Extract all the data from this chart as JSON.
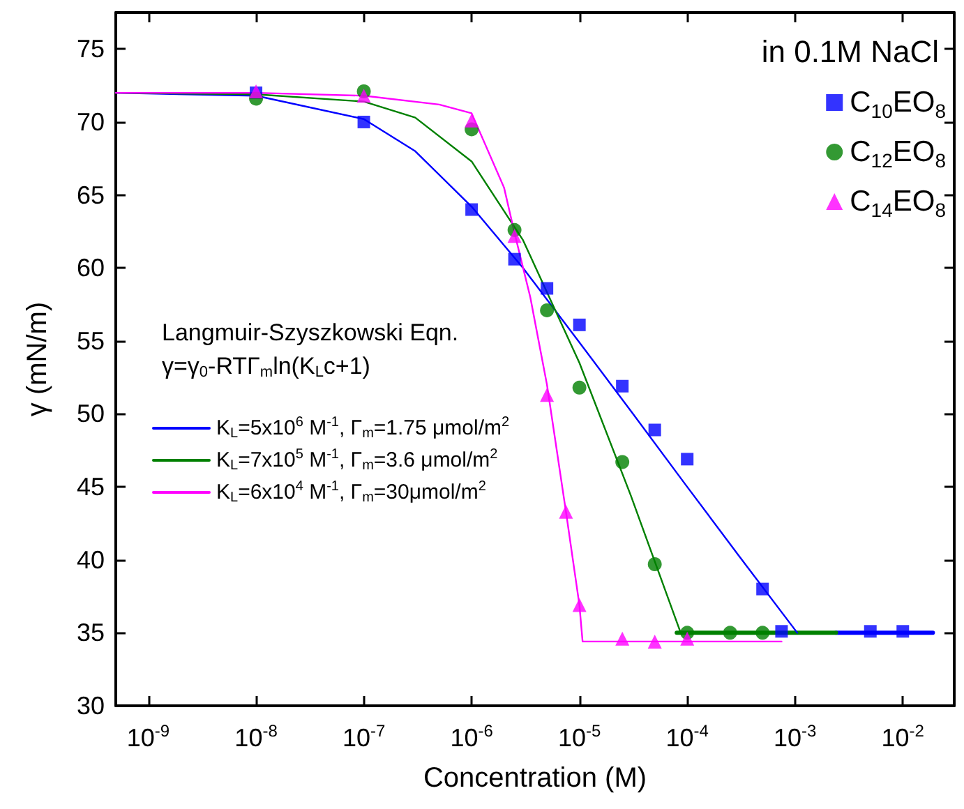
{
  "chart_data": {
    "type": "scatter",
    "xlabel": "Concentration (M)",
    "ylabel": "γ (mN/m)",
    "legend_title": "in 0.1M NaCl",
    "legend": "top right",
    "grid": false,
    "log": "x",
    "xlim": [
      5e-10,
      0.03
    ],
    "ylim": [
      30,
      77.5
    ],
    "xticks": [
      {
        "value": 1e-09,
        "label": "10$^{-9}$"
      },
      {
        "value": 1e-08,
        "label": "10$^{-8}$"
      },
      {
        "value": 1e-07,
        "label": "10$^{-7}$"
      },
      {
        "value": 1e-06,
        "label": "10$^{-6}$"
      },
      {
        "value": 1e-05,
        "label": "10$^{-5}$"
      },
      {
        "value": 0.0001,
        "label": "10$^{-4}$"
      },
      {
        "value": 0.001,
        "label": "10$^{-3}$"
      },
      {
        "value": 0.01,
        "label": "10$^{-2}$"
      }
    ],
    "yticks": [
      30,
      35,
      40,
      45,
      50,
      55,
      60,
      65,
      70,
      75
    ],
    "annotations": [
      "Langmuir-Szyszkowski Eqn.",
      "γ=γ$_{0}$-RTΓ$_{m}$ln(K$_{L}$c+1)"
    ],
    "series": [
      {
        "type": "scatter",
        "name": "C$_{10}$EO$_{8}$",
        "color": "#0000ff",
        "marker": "square",
        "x": [
          1e-08,
          1e-07,
          1e-06,
          2.5e-06,
          5e-06,
          1e-05,
          2.5e-05,
          5e-05,
          0.0001,
          0.0005,
          0.00075,
          0.005,
          0.01
        ],
        "values": [
          72.0,
          70.0,
          64.0,
          60.6,
          58.6,
          56.1,
          51.9,
          48.9,
          46.9,
          38.0,
          35.1,
          35.1,
          35.1
        ]
      },
      {
        "type": "scatter",
        "name": "C$_{12}$EO$_{8}$",
        "color": "#008000",
        "marker": "circle",
        "x": [
          1e-08,
          1e-07,
          1e-06,
          2.5e-06,
          5e-06,
          1e-05,
          2.5e-05,
          5e-05,
          0.0001,
          0.00025,
          0.0005
        ],
        "values": [
          71.6,
          72.1,
          69.5,
          62.6,
          57.1,
          51.8,
          46.7,
          39.7,
          35.0,
          35.0,
          35.0
        ]
      },
      {
        "type": "scatter",
        "name": "C$_{14}$EO$_{8}$",
        "color": "#ff00ff",
        "marker": "triangle",
        "x": [
          1e-08,
          1e-07,
          1e-06,
          2.5e-06,
          5e-06,
          7.5e-06,
          1e-05,
          2.5e-05,
          5e-05,
          0.0001
        ],
        "values": [
          72.1,
          71.8,
          70.1,
          62.2,
          51.3,
          43.3,
          36.9,
          34.6,
          34.4,
          34.6
        ]
      },
      {
        "type": "line",
        "name": "K$_{L}$=5x10$^{6}$ M$^{-1}$, Γ$_{m}$=1.75 μmol/m$^{2}$",
        "color": "#0000ff",
        "marker": "none",
        "x": [
          5e-10,
          1e-08,
          1e-07,
          3e-07,
          1e-06,
          3e-06,
          1e-05,
          3e-05,
          0.0001,
          0.0003,
          0.00105
        ],
        "values": [
          72.0,
          71.8,
          70.2,
          68.0,
          64.2,
          60.0,
          54.9,
          50.2,
          45.0,
          40.3,
          35.0
        ]
      },
      {
        "type": "line",
        "name": "K$_{L}$=7x10$^{5}$ M$^{-1}$, Γ$_{m}$=3.6 μmol/m$^{2}$",
        "color": "#008000",
        "marker": "none",
        "x": [
          5e-10,
          1e-08,
          1e-07,
          3e-07,
          1e-06,
          3e-06,
          1e-05,
          3e-05,
          8.7e-05
        ],
        "values": [
          72.0,
          71.9,
          71.4,
          70.3,
          67.3,
          61.9,
          53.5,
          44.4,
          35.0
        ]
      },
      {
        "type": "line",
        "name": "K$_{L}$=6x10$^{4}$ M$^{-1}$, Γ$_{m}$=30μmol/m$^{2}$",
        "color": "#ff00ff",
        "marker": "none",
        "x": [
          5e-10,
          1e-08,
          1e-07,
          5e-07,
          1e-06,
          2e-06,
          2.5e-06,
          3.5e-06,
          5e-06,
          7.5e-06,
          1e-05,
          1.07e-05,
          0.00075
        ],
        "values": [
          72.0,
          72.0,
          71.8,
          71.2,
          70.6,
          65.5,
          62.4,
          58.0,
          52.0,
          43.3,
          36.9,
          34.4,
          34.4
        ]
      },
      {
        "type": "line",
        "color": "#0000ff",
        "marker": "none",
        "x": [
          0.0024,
          0.019
        ],
        "values": [
          35.0,
          35.0
        ]
      },
      {
        "type": "line",
        "color": "#008000",
        "marker": "none",
        "x": [
          8e-05,
          0.0024
        ],
        "values": [
          35.0,
          35.0
        ]
      }
    ]
  }
}
